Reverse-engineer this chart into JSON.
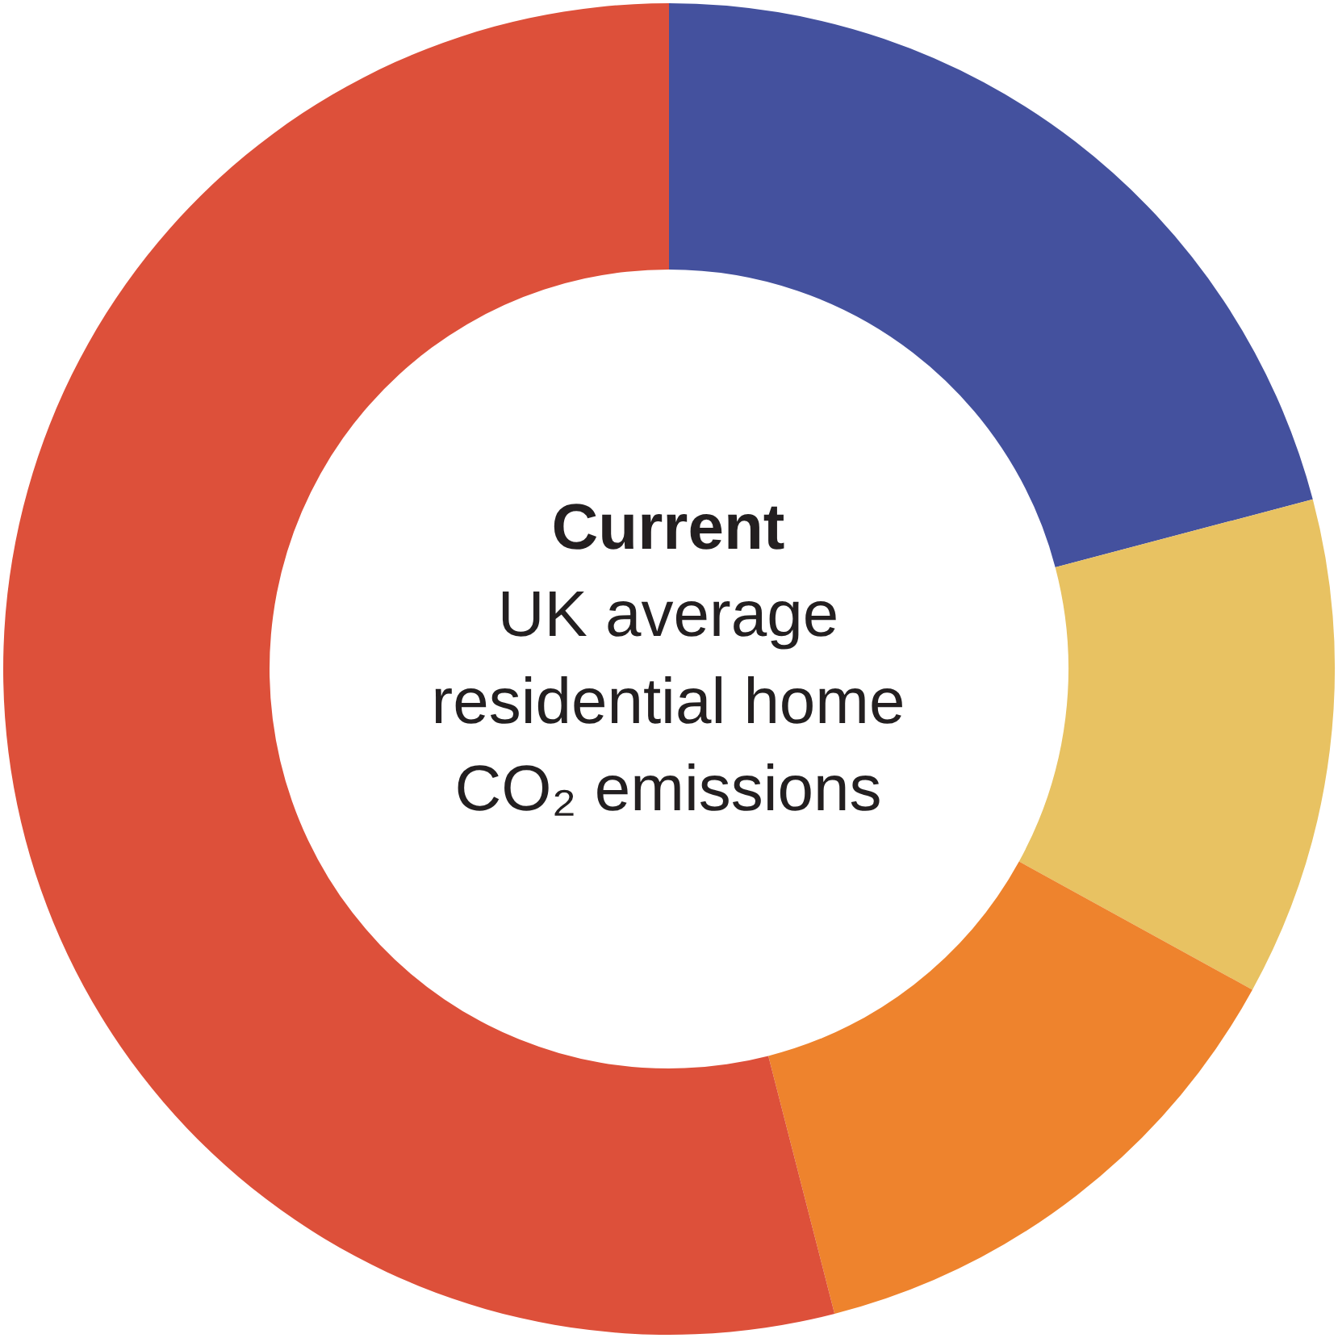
{
  "chart_data": {
    "type": "donut",
    "title": "Current",
    "subtitle": "UK average residential home CO₂ emissions",
    "categories": [
      null,
      null,
      null,
      null
    ],
    "values": [
      20.9,
      12.1,
      13.0,
      54.0
    ],
    "colors": [
      "#44519e",
      "#e8c262",
      "#ee832d",
      "#dd503a"
    ]
  }
}
